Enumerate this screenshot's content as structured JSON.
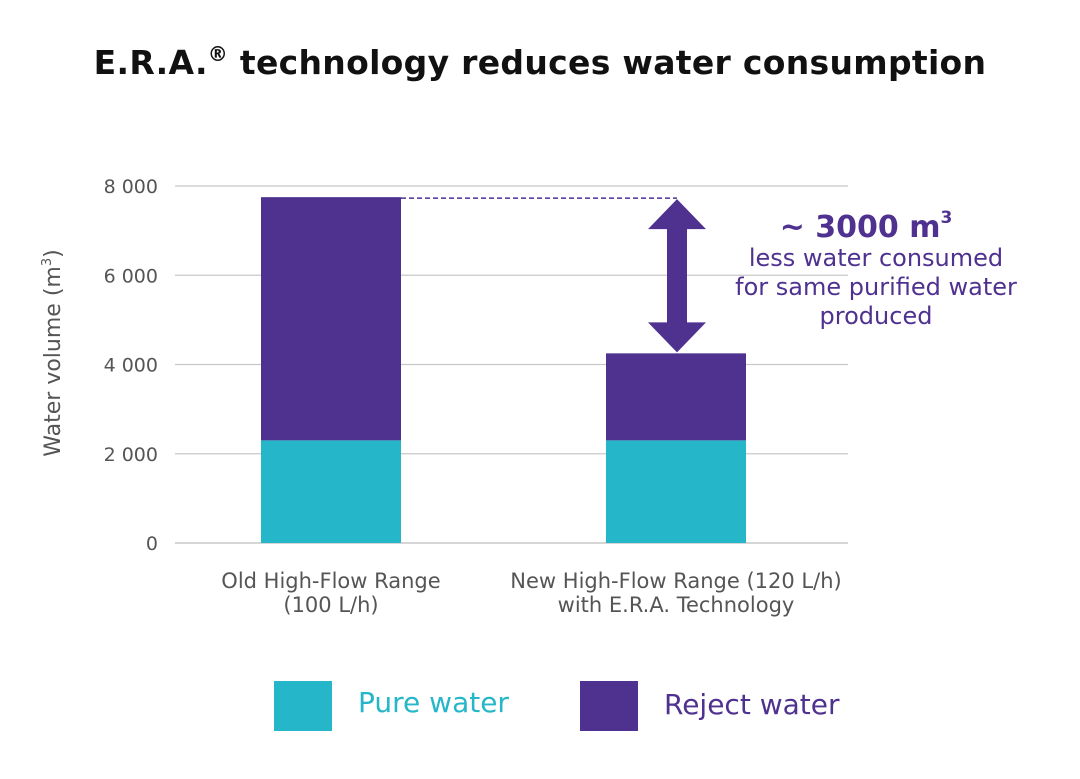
{
  "title": {
    "text": "E.R.A.",
    "mark": "®",
    "rest": " technology reduces water consumption"
  },
  "colors": {
    "pure": "#25b7c9",
    "reject": "#4f3190",
    "grid": "#c8c8c8",
    "axis_text": "#555555"
  },
  "chart_data": {
    "type": "bar",
    "stacked": true,
    "title": "E.R.A.® technology reduces water consumption",
    "categories": [
      [
        "Old High-Flow Range",
        "(100 L/h)"
      ],
      [
        "New High-Flow Range (120 L/h)",
        "with E.R.A. Technology"
      ]
    ],
    "series": [
      {
        "name": "Pure water",
        "values": [
          2300,
          2300
        ]
      },
      {
        "name": "Reject water",
        "values": [
          5450,
          1950
        ]
      }
    ],
    "ylim": [
      0,
      8000
    ],
    "yticks": [
      0,
      2000,
      4000,
      6000,
      8000
    ],
    "ytick_labels": [
      "0",
      "2 000",
      "4 000",
      "6 000",
      "8 000"
    ],
    "ylabel": "Water volume (m",
    "ylabel_sup": "3",
    "ylabel_close": ")",
    "grid": true,
    "legend_position": "bottom"
  },
  "annotation": {
    "value": "~ 3000 m",
    "value_sup": "3",
    "lines": [
      "less water consumed",
      "for same purified water",
      "produced"
    ]
  },
  "legend": {
    "items": [
      {
        "label": "Pure water"
      },
      {
        "label": "Reject water"
      }
    ]
  }
}
